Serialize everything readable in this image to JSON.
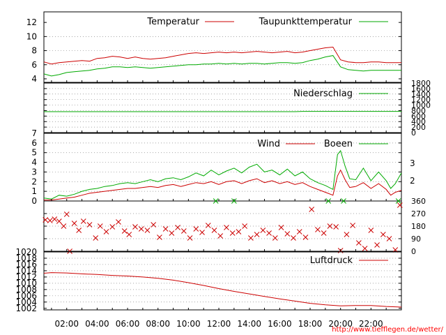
{
  "colors": {
    "red": "#cc0000",
    "green": "#00aa00"
  },
  "time_axis": {
    "start_hour": 0.5,
    "end_hour": 24,
    "ticks": [
      "02:00",
      "04:00",
      "06:00",
      "08:00",
      "10:00",
      "12:00",
      "14:00",
      "16:00",
      "18:00",
      "20:00",
      "22:00"
    ]
  },
  "credit": "http://www.tiefflegen.de/wetter/",
  "chart_data": [
    {
      "type": "line",
      "id": "temperature",
      "ylim": [
        3.5,
        13.5
      ],
      "yticks": [
        "4",
        "6",
        "8",
        "10",
        "12"
      ],
      "yticks_num": [
        4,
        6,
        8,
        10,
        12
      ],
      "series": [
        {
          "name": "Temperatur",
          "color": "red",
          "x": [
            0.5,
            1,
            1.5,
            2,
            2.5,
            3,
            3.5,
            4,
            4.5,
            5,
            5.5,
            6,
            6.5,
            7,
            7.5,
            8,
            8.5,
            9,
            9.5,
            10,
            10.5,
            11,
            11.5,
            12,
            12.5,
            13,
            13.5,
            14,
            14.5,
            15,
            15.5,
            16,
            16.5,
            17,
            17.5,
            18,
            18.5,
            19,
            19.5,
            20,
            20.5,
            21,
            21.5,
            22,
            22.5,
            23,
            23.5,
            24
          ],
          "values": [
            6.4,
            6.1,
            6.3,
            6.4,
            6.5,
            6.6,
            6.5,
            6.9,
            7.0,
            7.2,
            7.1,
            6.9,
            7.1,
            6.9,
            6.8,
            6.9,
            7.0,
            7.2,
            7.4,
            7.6,
            7.7,
            7.6,
            7.7,
            7.8,
            7.7,
            7.8,
            7.7,
            7.8,
            7.9,
            7.8,
            7.7,
            7.8,
            7.9,
            7.7,
            7.8,
            8.0,
            8.2,
            8.4,
            8.5,
            6.7,
            6.4,
            6.3,
            6.3,
            6.4,
            6.4,
            6.3,
            6.3,
            6.3
          ]
        },
        {
          "name": "Taupunkttemperatur",
          "color": "green",
          "x": [
            0.5,
            1,
            1.5,
            2,
            2.5,
            3,
            3.5,
            4,
            4.5,
            5,
            5.5,
            6,
            6.5,
            7,
            7.5,
            8,
            8.5,
            9,
            9.5,
            10,
            10.5,
            11,
            11.5,
            12,
            12.5,
            13,
            13.5,
            14,
            14.5,
            15,
            15.5,
            16,
            16.5,
            17,
            17.5,
            18,
            18.5,
            19,
            19.5,
            20,
            20.5,
            21,
            21.5,
            22,
            22.5,
            23,
            23.5,
            24
          ],
          "values": [
            4.7,
            4.4,
            4.6,
            4.9,
            5.0,
            5.1,
            5.2,
            5.4,
            5.5,
            5.7,
            5.7,
            5.6,
            5.7,
            5.6,
            5.5,
            5.6,
            5.7,
            5.8,
            5.9,
            6.0,
            6.0,
            6.1,
            6.1,
            6.2,
            6.1,
            6.2,
            6.1,
            6.2,
            6.2,
            6.1,
            6.2,
            6.3,
            6.3,
            6.2,
            6.3,
            6.6,
            6.8,
            7.1,
            7.3,
            5.7,
            5.3,
            5.2,
            5.1,
            5.2,
            5.2,
            5.2,
            5.2,
            5.2
          ]
        }
      ]
    },
    {
      "type": "line",
      "id": "precipitation",
      "ylim": [
        0,
        1800
      ],
      "yticks": [
        "0",
        "200",
        "400",
        "600",
        "800",
        "1000",
        "1200",
        "1400",
        "1600",
        "1800"
      ],
      "yticks_num": [
        0,
        200,
        400,
        600,
        800,
        1000,
        1200,
        1400,
        1600,
        1800
      ],
      "series": [
        {
          "name": "Niederschlag",
          "color": "green",
          "x": [
            0.5,
            17,
            17.5,
            24
          ],
          "values": [
            760,
            760,
            770,
            770
          ]
        }
      ]
    },
    {
      "type": "line",
      "id": "wind",
      "ylim": [
        0,
        7
      ],
      "yticks": [
        "0",
        "1",
        "2",
        "3",
        "4",
        "5",
        "6",
        "7"
      ],
      "yticks_num": [
        0,
        1,
        2,
        3,
        4,
        5,
        6,
        7
      ],
      "right_ticks": [
        "2",
        "3"
      ],
      "right_ticks_num": [
        2.1,
        3.9
      ],
      "series": [
        {
          "name": "Wind",
          "color": "red",
          "x": [
            0.5,
            1,
            1.5,
            2,
            2.5,
            3,
            3.5,
            4,
            4.5,
            5,
            5.5,
            6,
            6.5,
            7,
            7.5,
            8,
            8.5,
            9,
            9.5,
            10,
            10.5,
            11,
            11.5,
            12,
            12.5,
            13,
            13.5,
            14,
            14.5,
            15,
            15.5,
            16,
            16.5,
            17,
            17.5,
            18,
            18.5,
            19,
            19.5,
            19.8,
            20,
            20.3,
            20.6,
            21,
            21.5,
            22,
            22.5,
            23,
            23.3,
            23.6,
            24
          ],
          "values": [
            0.1,
            0.1,
            0.2,
            0.3,
            0.4,
            0.6,
            0.8,
            0.9,
            1.0,
            1.1,
            1.2,
            1.3,
            1.3,
            1.4,
            1.5,
            1.4,
            1.6,
            1.7,
            1.5,
            1.7,
            1.9,
            1.8,
            2.0,
            1.7,
            2.0,
            2.1,
            1.8,
            2.1,
            2.3,
            1.9,
            2.1,
            1.8,
            2.0,
            1.7,
            1.9,
            1.5,
            1.2,
            0.9,
            0.6,
            2.6,
            3.2,
            2.2,
            1.4,
            1.5,
            1.9,
            1.3,
            1.8,
            1.2,
            0.6,
            0.9,
            1.1
          ]
        },
        {
          "name": "Boeen",
          "color": "green",
          "x": [
            0.5,
            1,
            1.5,
            2,
            2.5,
            3,
            3.5,
            4,
            4.5,
            5,
            5.5,
            6,
            6.5,
            7,
            7.5,
            8,
            8.5,
            9,
            9.5,
            10,
            10.5,
            11,
            11.5,
            12,
            12.5,
            13,
            13.5,
            14,
            14.5,
            15,
            15.5,
            16,
            16.5,
            17,
            17.5,
            18,
            18.5,
            19,
            19.5,
            19.8,
            20,
            20.3,
            20.6,
            21,
            21.5,
            22,
            22.5,
            23,
            23.3,
            23.6,
            24
          ],
          "values": [
            0.3,
            0.2,
            0.6,
            0.5,
            0.7,
            1.0,
            1.2,
            1.3,
            1.5,
            1.6,
            1.8,
            1.9,
            1.8,
            2.0,
            2.2,
            2.0,
            2.3,
            2.4,
            2.2,
            2.5,
            2.9,
            2.6,
            3.2,
            2.7,
            3.1,
            3.4,
            2.9,
            3.5,
            3.8,
            3.0,
            3.2,
            2.7,
            3.3,
            2.6,
            3.0,
            2.3,
            1.9,
            1.6,
            1.2,
            4.8,
            5.2,
            3.6,
            2.3,
            2.2,
            3.4,
            2.1,
            3.0,
            2.1,
            1.3,
            1.8,
            2.9
          ]
        }
      ]
    },
    {
      "type": "scatter",
      "id": "wind-direction",
      "ylim": [
        0,
        360
      ],
      "yticks": [
        "0",
        "90",
        "180",
        "270",
        "360"
      ],
      "yticks_num": [
        0,
        90,
        180,
        270,
        360
      ],
      "series": [
        {
          "name": "",
          "color": "red",
          "x": [
            0.6,
            0.9,
            1.2,
            1.5,
            1.8,
            2.0,
            2.2,
            2.5,
            2.8,
            3.1,
            3.5,
            3.9,
            4.2,
            4.6,
            5.0,
            5.4,
            5.8,
            6.1,
            6.5,
            6.9,
            7.3,
            7.7,
            8.1,
            8.5,
            8.9,
            9.3,
            9.7,
            10.1,
            10.5,
            10.9,
            11.3,
            11.7,
            12.1,
            12.5,
            12.9,
            13.3,
            13.7,
            14.1,
            14.5,
            14.9,
            15.3,
            15.7,
            16.1,
            16.5,
            16.9,
            17.3,
            17.7,
            18.1,
            18.5,
            18.9,
            19.3,
            19.7,
            20.0,
            20.4,
            20.8,
            21.2,
            21.6,
            22.0,
            22.4,
            22.8,
            23.2,
            23.6,
            23.9
          ],
          "values": [
            225,
            220,
            230,
            215,
            180,
            265,
            0,
            200,
            150,
            215,
            190,
            95,
            180,
            140,
            175,
            210,
            145,
            120,
            175,
            160,
            150,
            190,
            100,
            160,
            130,
            170,
            145,
            95,
            160,
            135,
            185,
            150,
            110,
            170,
            130,
            140,
            180,
            95,
            120,
            150,
            130,
            95,
            170,
            125,
            95,
            140,
            100,
            300,
            155,
            130,
            180,
            175,
            5,
            120,
            185,
            60,
            20,
            150,
            45,
            120,
            90,
            10,
            330
          ]
        },
        {
          "name": "",
          "color": "green",
          "x": [
            11.8,
            13.0,
            19.2,
            20.2,
            23.8
          ],
          "values": [
            360,
            360,
            360,
            360,
            360
          ]
        }
      ]
    },
    {
      "type": "line",
      "id": "pressure",
      "ylim": [
        1001.5,
        1020
      ],
      "yticks": [
        "1002",
        "1004",
        "1006",
        "1008",
        "1010",
        "1012",
        "1014",
        "1016",
        "1018",
        "1020"
      ],
      "yticks_num": [
        1002,
        1004,
        1006,
        1008,
        1010,
        1012,
        1014,
        1016,
        1018,
        1020
      ],
      "series": [
        {
          "name": "Luftdruck",
          "color": "red",
          "x": [
            0.5,
            1,
            2,
            3,
            4,
            5,
            6,
            7,
            8,
            9,
            10,
            11,
            12,
            13,
            14,
            15,
            16,
            17,
            18,
            19,
            20,
            21,
            22,
            23,
            24
          ],
          "values": [
            1013.2,
            1013.4,
            1013.3,
            1013.0,
            1012.8,
            1012.5,
            1012.3,
            1012.0,
            1011.6,
            1011.0,
            1010.2,
            1009.3,
            1008.3,
            1007.4,
            1006.6,
            1005.8,
            1005.0,
            1004.3,
            1003.6,
            1003.1,
            1002.8,
            1002.9,
            1002.9,
            1002.6,
            1002.4
          ]
        }
      ]
    }
  ]
}
